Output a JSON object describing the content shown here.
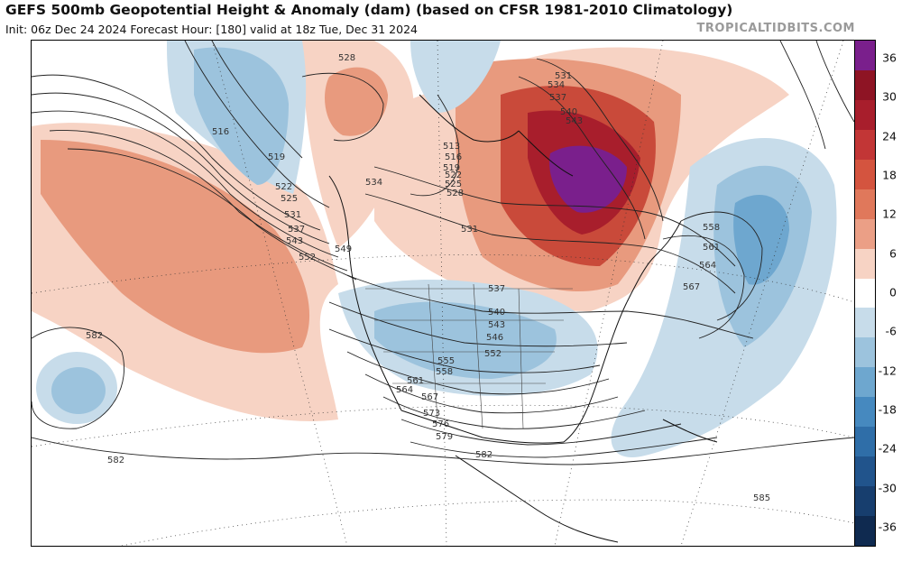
{
  "header": {
    "title": "GEFS 500mb Geopotential Height & Anomaly (dam) (based on CFSR 1981-2010 Climatology)",
    "subtitle": "Init: 06z Dec 24 2024   Forecast Hour: [180]   valid at 18z Tue, Dec 31 2024",
    "brand": "TROPICALTIDBITS.COM"
  },
  "colorbar": {
    "labels": [
      "36",
      "30",
      "24",
      "18",
      "12",
      "6",
      "0",
      "-6",
      "-12",
      "-18",
      "-24",
      "-30",
      "-36"
    ],
    "colors": [
      "#7a1f8c",
      "#8e1424",
      "#a81e2c",
      "#c23636",
      "#d4543f",
      "#e0785b",
      "#eb9f86",
      "#f7d3c4",
      "#ffffff",
      "#c7dcea",
      "#9cc3dd",
      "#6ea7cf",
      "#4689bf",
      "#2f6ea8",
      "#21548c",
      "#173e6e",
      "#0f2a50"
    ]
  },
  "contour_labels": [
    "528",
    "531",
    "534",
    "537",
    "540",
    "543",
    "516",
    "519",
    "522",
    "525",
    "531",
    "537",
    "543",
    "549",
    "552",
    "534",
    "513",
    "516",
    "519",
    "522",
    "525",
    "528",
    "531",
    "537",
    "540",
    "543",
    "546",
    "552",
    "555",
    "558",
    "561",
    "564",
    "567",
    "573",
    "576",
    "579",
    "582",
    "558",
    "561",
    "564",
    "567",
    "582",
    "582",
    "585"
  ]
}
